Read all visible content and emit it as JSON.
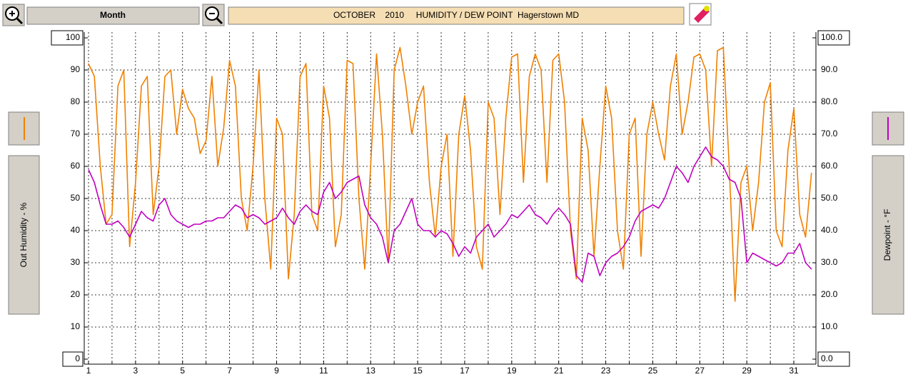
{
  "chart_data": {
    "type": "line",
    "title": "OCTOBER    2010     HUMIDITY / DEW POINT  Hagerstown MD",
    "period": "Month",
    "ylabel": "Out Humidity - %",
    "y2label": "Dewpoint - °F",
    "grid": true,
    "xlim": [
      1,
      32
    ],
    "xticks": [
      1,
      3,
      5,
      7,
      9,
      11,
      13,
      15,
      17,
      19,
      21,
      23,
      25,
      27,
      29,
      31
    ],
    "xminorticks": [
      2,
      4,
      6,
      8,
      10,
      12,
      14,
      16,
      18,
      20,
      22,
      24,
      26,
      28,
      30
    ],
    "ylim": [
      0,
      100
    ],
    "yticks": [
      100,
      90,
      80,
      70,
      60,
      50,
      40,
      30,
      20,
      10,
      0
    ],
    "y2lim": [
      0,
      100
    ],
    "y2ticks": [
      {
        "value": 100,
        "label": "100.0"
      },
      {
        "value": 90,
        "label": "90.0"
      },
      {
        "value": 80,
        "label": "80.0"
      },
      {
        "value": 70,
        "label": "70.0"
      },
      {
        "value": 60,
        "label": "60.0"
      },
      {
        "value": 50,
        "label": "50.0"
      },
      {
        "value": 40,
        "label": "40.0"
      },
      {
        "value": 30,
        "label": "30.0"
      },
      {
        "value": 20,
        "label": "20.0"
      },
      {
        "value": 10,
        "label": "10.0"
      },
      {
        "value": 0,
        "label": "0.0"
      }
    ],
    "x": [
      1,
      1.25,
      1.5,
      1.75,
      2,
      2.25,
      2.5,
      2.75,
      3,
      3.25,
      3.5,
      3.75,
      4,
      4.25,
      4.5,
      4.75,
      5,
      5.25,
      5.5,
      5.75,
      6,
      6.25,
      6.5,
      6.75,
      7,
      7.25,
      7.5,
      7.75,
      8,
      8.25,
      8.5,
      8.75,
      9,
      9.25,
      9.5,
      9.75,
      10,
      10.25,
      10.5,
      10.75,
      11,
      11.25,
      11.5,
      11.75,
      12,
      12.25,
      12.5,
      12.75,
      13,
      13.25,
      13.5,
      13.75,
      14,
      14.25,
      14.5,
      14.75,
      15,
      15.25,
      15.5,
      15.75,
      16,
      16.25,
      16.5,
      16.75,
      17,
      17.25,
      17.5,
      17.75,
      18,
      18.25,
      18.5,
      18.75,
      19,
      19.25,
      19.5,
      19.75,
      20,
      20.25,
      20.5,
      20.75,
      21,
      21.25,
      21.5,
      21.75,
      22,
      22.25,
      22.5,
      22.75,
      23,
      23.25,
      23.5,
      23.75,
      24,
      24.25,
      24.5,
      24.75,
      25,
      25.25,
      25.5,
      25.75,
      26,
      26.25,
      26.5,
      26.75,
      27,
      27.25,
      27.5,
      27.75,
      28,
      28.25,
      28.5,
      28.75,
      29,
      29.25,
      29.5,
      29.75,
      30,
      30.25,
      30.5,
      30.75,
      31,
      31.25,
      31.5,
      31.75
    ],
    "series": [
      {
        "color": "#f08000",
        "values": [
          92,
          88,
          60,
          42,
          45,
          85,
          90,
          35,
          55,
          85,
          88,
          45,
          60,
          88,
          90,
          70,
          84,
          78,
          75,
          64,
          68,
          88,
          60,
          72,
          93,
          85,
          50,
          40,
          60,
          90,
          50,
          28,
          75,
          70,
          25,
          45,
          88,
          92,
          45,
          40,
          85,
          75,
          35,
          45,
          93,
          92,
          50,
          28,
          60,
          95,
          70,
          30,
          90,
          97,
          85,
          70,
          80,
          85,
          55,
          38,
          60,
          70,
          32,
          70,
          82,
          65,
          35,
          28,
          80,
          75,
          45,
          75,
          94,
          95,
          55,
          88,
          95,
          90,
          55,
          93,
          95,
          80,
          40,
          25,
          75,
          65,
          32,
          60,
          85,
          75,
          40,
          28,
          70,
          75,
          32,
          70,
          80,
          70,
          62,
          85,
          95,
          70,
          80,
          94,
          95,
          90,
          60,
          96,
          97,
          60,
          18,
          55,
          60,
          40,
          55,
          80,
          86,
          40,
          35,
          65,
          78,
          45,
          38,
          58
        ]
      },
      {
        "color": "#c000c0",
        "axis": "y2",
        "values": [
          59,
          55,
          48,
          42,
          42,
          43,
          41,
          38,
          42,
          46,
          44,
          43,
          48,
          50,
          45,
          43,
          42,
          41,
          42,
          42,
          43,
          43,
          44,
          44,
          46,
          48,
          47,
          44,
          45,
          44,
          42,
          43,
          44,
          47,
          44,
          42,
          46,
          48,
          46,
          45,
          52,
          55,
          50,
          52,
          55,
          56,
          57,
          48,
          44,
          42,
          38,
          30,
          40,
          42,
          46,
          50,
          42,
          40,
          40,
          38,
          40,
          39,
          36,
          32,
          35,
          33,
          38,
          40,
          42,
          38,
          40,
          42,
          45,
          44,
          46,
          48,
          45,
          44,
          42,
          45,
          47,
          45,
          42,
          26,
          24,
          33,
          32,
          26,
          30,
          32,
          33,
          35,
          38,
          43,
          46,
          47,
          48,
          47,
          50,
          55,
          60,
          58,
          55,
          60,
          63,
          66,
          63,
          62,
          60,
          56,
          55,
          50,
          30,
          33,
          32,
          31,
          30,
          29,
          30,
          33,
          33,
          36,
          30,
          28
        ]
      }
    ]
  }
}
